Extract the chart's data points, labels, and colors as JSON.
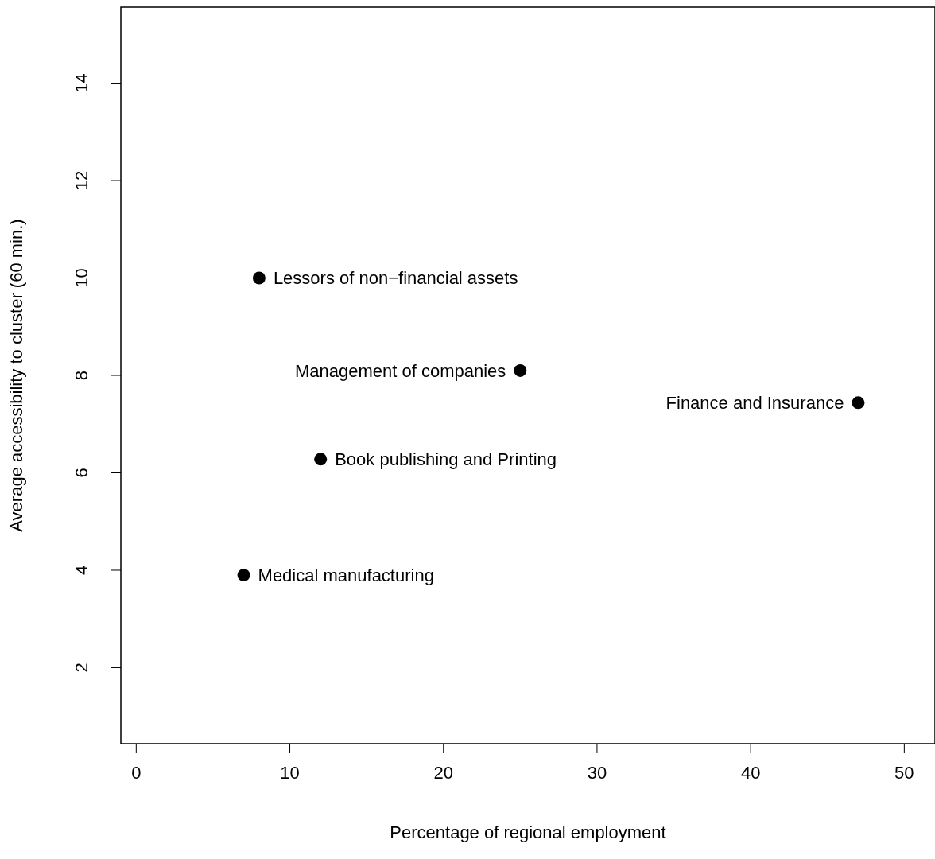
{
  "chart_data": {
    "type": "scatter",
    "xlabel": "Percentage of regional employment",
    "ylabel": "Average accessibility to cluster (60 min.)",
    "x": [
      8,
      25,
      47,
      12,
      7
    ],
    "values": [
      10,
      8.1,
      7.44,
      6.28,
      3.9
    ],
    "color": "#000000",
    "marker": "circle",
    "xlim": [
      -1,
      52
    ],
    "ylim": [
      0.44,
      15.56
    ],
    "xticks": [
      0,
      10,
      20,
      30,
      40,
      50
    ],
    "yticks": [
      2,
      4,
      6,
      8,
      10,
      12,
      14
    ],
    "grid": false,
    "legend": false,
    "annotations": [
      {
        "text": "Lessors of non−financial assets",
        "x": 8,
        "y": 10
      },
      {
        "text": "Management of companies",
        "x": 25,
        "y": 8.1
      },
      {
        "text": "Finance and Insurance",
        "x": 47,
        "y": 7.44
      },
      {
        "text": "Book publishing and Printing",
        "x": 12,
        "y": 6.28
      },
      {
        "text": "Medical manufacturing",
        "x": 7,
        "y": 3.9
      }
    ]
  }
}
